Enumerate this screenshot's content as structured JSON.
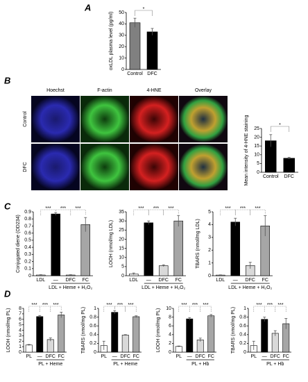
{
  "panel_labels": [
    "A",
    "B",
    "C",
    "D"
  ],
  "image_panel": {
    "columns": [
      "Hoechst",
      "F-actin",
      "4-HNE",
      "Overlay"
    ],
    "rows": [
      "Control",
      "DFC"
    ]
  },
  "chart_data": [
    {
      "type": "bar",
      "ylabel": "oxLDL plasma level (pg/ml)",
      "categories": [
        "Control",
        "DFC"
      ],
      "values": [
        41,
        33
      ],
      "errors": [
        4,
        3
      ],
      "colors": [
        "#808080",
        "#000000"
      ],
      "ylim": [
        0,
        50
      ],
      "yticks": [
        0,
        10,
        20,
        30,
        40,
        50
      ],
      "significance": "*"
    },
    {
      "type": "bar",
      "ylabel": "Mean intensity of 4-HNE staining",
      "categories": [
        "Control",
        "DFC"
      ],
      "values": [
        18,
        8
      ],
      "errors": [
        3.5,
        0.5
      ],
      "colors": [
        "#000000",
        "#000000"
      ],
      "ylim": [
        0,
        25
      ],
      "yticks": [
        0,
        5,
        10,
        15,
        20,
        25
      ],
      "significance": "*"
    },
    {
      "type": "bar",
      "ylabel": "Conjugated diene (OD234)",
      "categories": [
        "LDL",
        "—",
        "DFC",
        "FC"
      ],
      "group_label": "LDL + Heme + H₂O₂",
      "values": [
        0.01,
        0.87,
        0.01,
        0.72
      ],
      "errors": [
        0.005,
        0.02,
        0.005,
        0.1
      ],
      "colors": [
        "#ffffff",
        "#000000",
        "#d9d9d9",
        "#a6a6a6"
      ],
      "ylim": [
        0,
        0.9
      ],
      "yticks": [
        0,
        0.1,
        0.2,
        0.3,
        0.4,
        0.5,
        0.6,
        0.7,
        0.8,
        0.9
      ],
      "significance": "***"
    },
    {
      "type": "bar",
      "ylabel": "LOOH (nmol/mg LDL)",
      "categories": [
        "LDL",
        "—",
        "DFC",
        "FC"
      ],
      "group_label": "LDL + Heme + H₂O₂",
      "values": [
        1,
        29,
        5.5,
        30
      ],
      "errors": [
        0.5,
        1,
        0.5,
        3
      ],
      "colors": [
        "#ffffff",
        "#000000",
        "#d9d9d9",
        "#a6a6a6"
      ],
      "ylim": [
        0,
        35
      ],
      "yticks": [
        0,
        5,
        10,
        15,
        20,
        25,
        30,
        35
      ],
      "significance": "***"
    },
    {
      "type": "bar",
      "ylabel": "TBARS (nmol/mg LDL)",
      "categories": [
        "LDL",
        "—",
        "DFC",
        "FC"
      ],
      "group_label": "LDL + Heme + H₂O₂",
      "values": [
        0.05,
        4.2,
        0.8,
        3.9
      ],
      "errors": [
        0.02,
        0.3,
        0.25,
        0.8
      ],
      "colors": [
        "#ffffff",
        "#000000",
        "#d9d9d9",
        "#a6a6a6"
      ],
      "ylim": [
        0,
        5
      ],
      "yticks": [
        0,
        1,
        2,
        3,
        4,
        5
      ],
      "significance": "***"
    },
    {
      "type": "bar",
      "ylabel": "LOOH (nmol/mg PL)",
      "categories": [
        "PL",
        "—",
        "DFC",
        "FC"
      ],
      "group_label": "PL + Heme",
      "values": [
        1.3,
        6.5,
        2.3,
        6.8
      ],
      "errors": [
        0.1,
        0.2,
        0.3,
        0.5
      ],
      "colors": [
        "#ffffff",
        "#000000",
        "#d9d9d9",
        "#a6a6a6"
      ],
      "ylim": [
        0,
        8
      ],
      "yticks": [
        0,
        1,
        2,
        3,
        4,
        5,
        6,
        7,
        8
      ],
      "significance": "***"
    },
    {
      "type": "bar",
      "ylabel": "TBARS (nmol/mg PL)",
      "categories": [
        "PL",
        "—",
        "DFC",
        "FC"
      ],
      "group_label": "PL + Heme",
      "values": [
        0.15,
        0.91,
        0.39,
        0.81
      ],
      "errors": [
        0.1,
        0.04,
        0.01,
        0.02
      ],
      "colors": [
        "#ffffff",
        "#000000",
        "#d9d9d9",
        "#a6a6a6"
      ],
      "ylim": [
        0,
        1
      ],
      "yticks": [
        0,
        0.2,
        0.4,
        0.6,
        0.8,
        1
      ],
      "significance": "***"
    },
    {
      "type": "bar",
      "ylabel": "LOOH (nmol/mg PL)",
      "categories": [
        "PL",
        "—",
        "DFC",
        "FC"
      ],
      "group_label": "PL + Hb",
      "values": [
        1.3,
        7.6,
        2.8,
        8.3
      ],
      "errors": [
        0.1,
        0.3,
        0.4,
        0.3
      ],
      "colors": [
        "#ffffff",
        "#000000",
        "#d9d9d9",
        "#a6a6a6"
      ],
      "ylim": [
        0,
        10
      ],
      "yticks": [
        0,
        2,
        4,
        6,
        8,
        10
      ],
      "significance": "***"
    },
    {
      "type": "bar",
      "ylabel": "TBARS (nmol/mg PL)",
      "categories": [
        "PL",
        "—",
        "DFC",
        "FC"
      ],
      "group_label": "PL + Hb",
      "values": [
        0.15,
        0.75,
        0.43,
        0.65
      ],
      "errors": [
        0.1,
        0.05,
        0.06,
        0.12
      ],
      "colors": [
        "#ffffff",
        "#000000",
        "#d9d9d9",
        "#a6a6a6"
      ],
      "ylim": [
        0,
        1
      ],
      "yticks": [
        0,
        0.2,
        0.4,
        0.6,
        0.8,
        1
      ],
      "significance": "***"
    }
  ]
}
